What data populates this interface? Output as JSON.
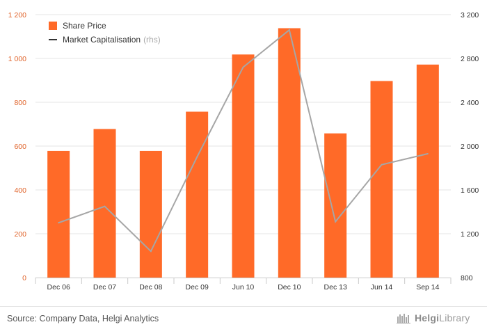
{
  "chart_data": {
    "type": "bar+line",
    "categories": [
      "Dec 06",
      "Dec 07",
      "Dec 08",
      "Dec 09",
      "Jun 10",
      "Dec 10",
      "Dec 13",
      "Jun 14",
      "Sep 14"
    ],
    "series": [
      {
        "name": "Share Price",
        "type": "bar",
        "axis": "left",
        "color": "#ff6a28",
        "values": [
          578,
          678,
          578,
          757,
          1018,
          1138,
          658,
          897,
          972
        ]
      },
      {
        "name": "Market Capitalisation",
        "suffix": "(rhs)",
        "type": "line",
        "axis": "right",
        "color": "#a6a6a6",
        "values": [
          1300,
          1450,
          1040,
          1900,
          2720,
          3060,
          1310,
          1830,
          1930
        ]
      }
    ],
    "y_left": {
      "min": 0,
      "max": 1200,
      "ticks": [
        0,
        200,
        400,
        600,
        800,
        1000,
        1200
      ],
      "tick_labels": [
        "0",
        "200",
        "400",
        "600",
        "800",
        "1 000",
        "1 200"
      ]
    },
    "y_right": {
      "min": 800,
      "max": 3200,
      "ticks": [
        800,
        1200,
        1600,
        2000,
        2400,
        2800,
        3200
      ],
      "tick_labels": [
        "800",
        "1 200",
        "1 600",
        "2 000",
        "2 400",
        "2 800",
        "3 200"
      ]
    },
    "legend_position": "top-left",
    "source": "Source: Company Data, Helgi Analytics"
  },
  "logo": {
    "brand": "Helgi",
    "suffix": "Library"
  },
  "colors": {
    "bar": "#ff6a28",
    "line": "#a6a6a6",
    "left_axis_text": "#e0632a",
    "right_axis_text": "#333333"
  }
}
